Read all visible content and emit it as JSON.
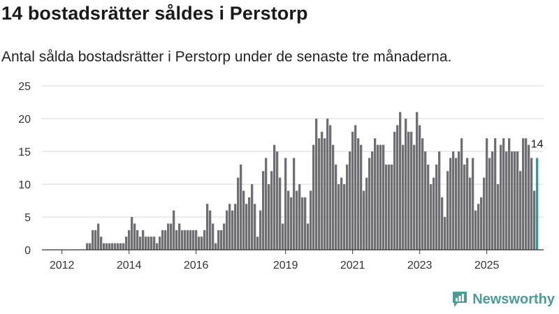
{
  "header": {
    "title": "14 bostadsrätter såldes i Perstorp",
    "subtitle": "Antal sålda bostadsrätter i Perstorp under de senaste tre månaderna."
  },
  "brand": {
    "name": "Newsworthy",
    "color": "#4a9c95"
  },
  "colors": {
    "bar": "#6e6e73",
    "highlight": "#2a9d96",
    "grid": "#d9d9d9"
  },
  "chart_data": {
    "type": "bar",
    "title": "14 bostadsrätter såldes i Perstorp",
    "ylim": [
      0,
      25
    ],
    "yticks": [
      0,
      5,
      10,
      15,
      20,
      25
    ],
    "xticks": [
      "2012",
      "2014",
      "2016",
      "2019",
      "2021",
      "2023",
      "2025"
    ],
    "xtick_index": [
      6,
      30,
      54,
      86,
      110,
      134,
      158
    ],
    "highlight_label": "14",
    "values": [
      0,
      0,
      0,
      0,
      0,
      0,
      0,
      0,
      0,
      0,
      0,
      0,
      0,
      0,
      0,
      1,
      1,
      3,
      3,
      4,
      2,
      1,
      1,
      1,
      1,
      1,
      1,
      1,
      1,
      2,
      3,
      5,
      4,
      3,
      2,
      3,
      2,
      2,
      2,
      2,
      1,
      2,
      3,
      3,
      4,
      4,
      6,
      3,
      4,
      3,
      3,
      3,
      3,
      3,
      3,
      2,
      2,
      3,
      7,
      6,
      4,
      1,
      3,
      3,
      4,
      6,
      7,
      6,
      7,
      11,
      13,
      9,
      7,
      8,
      10,
      7,
      2,
      6,
      12,
      14,
      10,
      12,
      16,
      15,
      11,
      4,
      14,
      9,
      8,
      14,
      9,
      10,
      8,
      8,
      4,
      9,
      16,
      20,
      17,
      18,
      17,
      20,
      19,
      16,
      13,
      10,
      11,
      10,
      13,
      15,
      18,
      19,
      17,
      16,
      9,
      11,
      14,
      15,
      17,
      16,
      16,
      16,
      13,
      13,
      13,
      18,
      19,
      21,
      16,
      20,
      18,
      18,
      16,
      21,
      19,
      17,
      15,
      13,
      10,
      11,
      13,
      15,
      8,
      5,
      12,
      14,
      15,
      14,
      15,
      17,
      13,
      14,
      11,
      14,
      6,
      7,
      8,
      11,
      17,
      14,
      15,
      17,
      10,
      16,
      17,
      15,
      17,
      15,
      15,
      15,
      12,
      17,
      17,
      16,
      14,
      9,
      14
    ]
  }
}
